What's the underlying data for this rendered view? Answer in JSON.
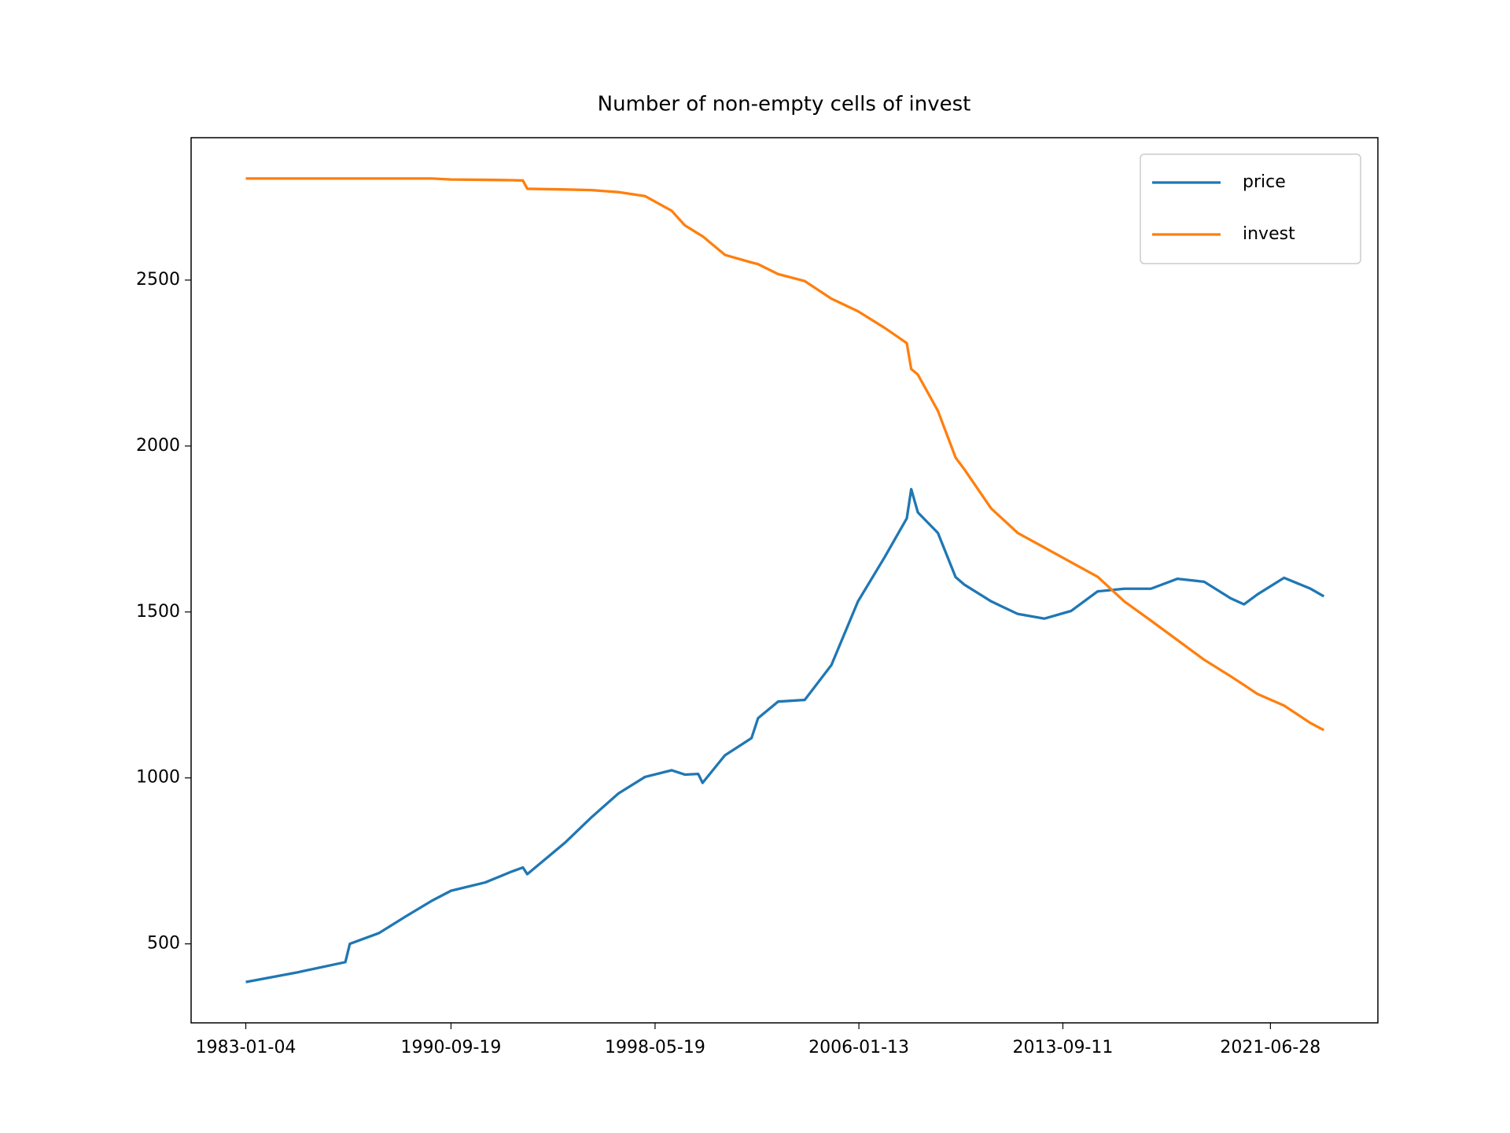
{
  "chart_data": {
    "type": "line",
    "title": "Number of non-empty cells of invest",
    "x": [
      "1983-01-04",
      "1985-01-01",
      "1986-10-01",
      "1986-12-01",
      "1988-01-01",
      "1989-01-01",
      "1990-01-01",
      "1990-09-19",
      "1992-01-01",
      "1993-01-01",
      "1993-06-01",
      "1993-08-01",
      "1995-01-01",
      "1996-01-01",
      "1997-01-01",
      "1998-01-01",
      "1999-01-01",
      "1999-07-01",
      "2000-01-01",
      "2000-03-01",
      "2001-01-01",
      "2002-01-01",
      "2002-04-01",
      "2003-01-01",
      "2004-01-01",
      "2005-01-01",
      "2006-01-01",
      "2007-01-01",
      "2007-11-01",
      "2008-01-01",
      "2008-04-01",
      "2009-01-01",
      "2009-09-01",
      "2010-01-01",
      "2011-01-01",
      "2012-01-01",
      "2013-01-01",
      "2014-01-01",
      "2015-01-01",
      "2016-01-01",
      "2017-01-01",
      "2018-01-01",
      "2019-01-01",
      "2020-01-01",
      "2020-07-01",
      "2021-01-01",
      "2022-01-01",
      "2023-01-01",
      "2023-07-01"
    ],
    "series": [
      {
        "name": "price",
        "color": "#1f77b4",
        "values": [
          385,
          415,
          445,
          500,
          532,
          582,
          630,
          660,
          685,
          718,
          730,
          710,
          805,
          882,
          953,
          1003,
          1023,
          1010,
          1012,
          985,
          1068,
          1120,
          1180,
          1230,
          1235,
          1340,
          1532,
          1665,
          1782,
          1870,
          1800,
          1738,
          1605,
          1582,
          1532,
          1494,
          1480,
          1503,
          1562,
          1570,
          1570,
          1600,
          1591,
          1541,
          1523,
          1553,
          1603,
          1570,
          1547
        ]
      },
      {
        "name": "invest",
        "color": "#ff7f0e",
        "values": [
          2806,
          2806,
          2806,
          2806,
          2806,
          2806,
          2806,
          2803,
          2802,
          2801,
          2800,
          2775,
          2773,
          2771,
          2765,
          2753,
          2709,
          2665,
          2640,
          2632,
          2576,
          2553,
          2548,
          2518,
          2497,
          2444,
          2406,
          2356,
          2310,
          2232,
          2215,
          2106,
          1965,
          1929,
          1812,
          1738,
          1694,
          1650,
          1606,
          1532,
          1474,
          1415,
          1356,
          1306,
          1280,
          1253,
          1218,
          1165,
          1144
        ]
      }
    ],
    "xlim": [
      "1980-12-15",
      "2025-07-11"
    ],
    "xticks": [
      "1983-01-04",
      "1990-09-19",
      "1998-05-19",
      "2006-01-13",
      "2013-09-11",
      "2021-06-28"
    ],
    "ylim": [
      262,
      2929
    ],
    "yticks": [
      500,
      1000,
      1500,
      2000,
      2500
    ],
    "legend": "upper right"
  }
}
